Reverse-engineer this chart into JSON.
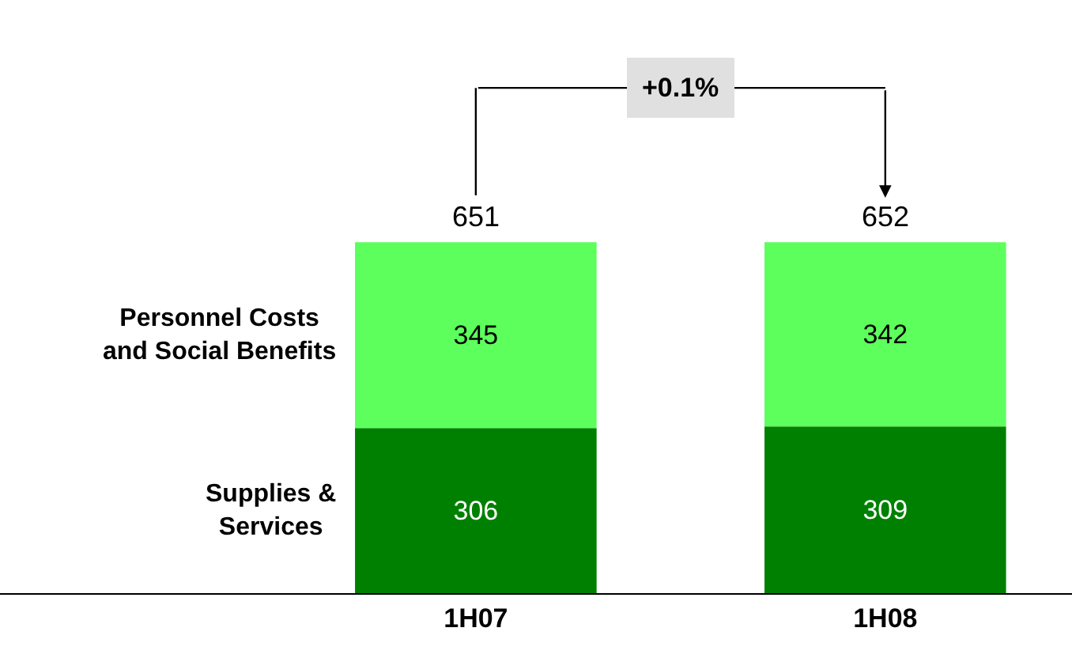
{
  "chart_data": {
    "type": "bar",
    "stacked": true,
    "categories": [
      "1H07",
      "1H08"
    ],
    "series": [
      {
        "name": "Supplies &\nServices",
        "color": "#008000",
        "values": [
          306,
          309
        ]
      },
      {
        "name": "Personnel Costs\nand Social Benefits",
        "color": "#5cff5c",
        "values": [
          345,
          342
        ]
      }
    ],
    "data_labels": true,
    "totals": [
      "651",
      "652"
    ],
    "annotations": [
      "+0.1%"
    ],
    "ylim": [
      0,
      1100
    ],
    "legend": false
  }
}
